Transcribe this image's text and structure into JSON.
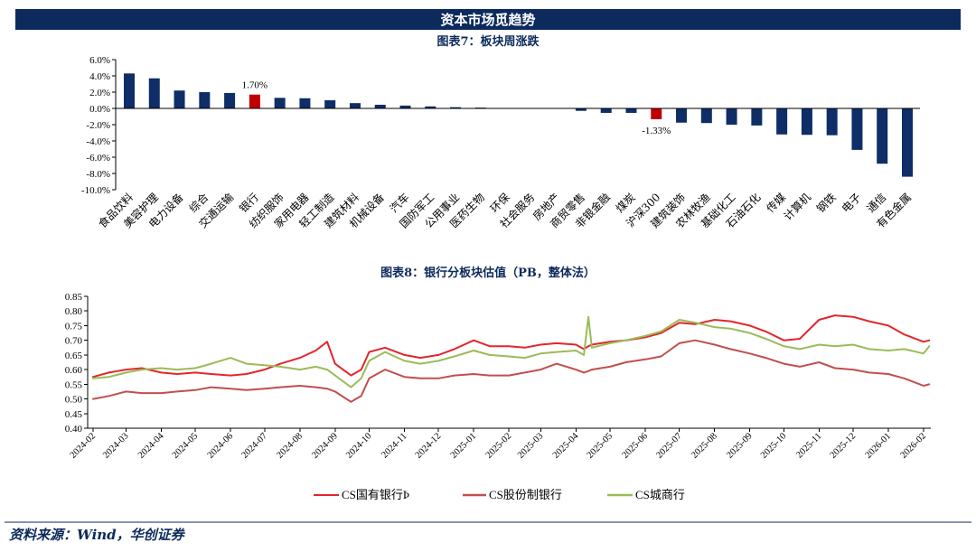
{
  "banner": {
    "title": "资本市场觅趋势"
  },
  "footer": {
    "source": "资料来源：Wind，华创证券"
  },
  "colors": {
    "banner": "#0c2a5b",
    "title": "#0c2a5b",
    "bar": "#0f2d66",
    "highlight_bar": "#c00000",
    "source": "#0c2a5b",
    "footer_rule": "#0c2a5b"
  },
  "chart_data": [
    {
      "type": "bar",
      "title": "图表7：板块周涨跌",
      "categories": [
        "食品饮料",
        "美容护理",
        "电力设备",
        "综合",
        "交通运输",
        "银行",
        "纺织服饰",
        "家用电器",
        "轻工制造",
        "建筑材料",
        "机械设备",
        "汽车",
        "国防军工",
        "公用事业",
        "医药生物",
        "环保",
        "社会服务",
        "房地产",
        "商贸零售",
        "非银金融",
        "煤炭",
        "沪深300",
        "建筑装饰",
        "农林牧渔",
        "基础化工",
        "石油石化",
        "传媒",
        "计算机",
        "钢铁",
        "电子",
        "通信",
        "有色金属"
      ],
      "values": [
        4.3,
        3.7,
        2.2,
        2.0,
        1.9,
        1.7,
        1.3,
        1.25,
        1.0,
        0.65,
        0.45,
        0.35,
        0.25,
        0.15,
        0.1,
        0.05,
        0.02,
        -0.05,
        -0.3,
        -0.55,
        -0.55,
        -1.33,
        -1.75,
        -1.8,
        -2.0,
        -2.1,
        -3.2,
        -3.25,
        -3.3,
        -5.1,
        -6.8,
        -8.4
      ],
      "highlight": [
        "银行",
        "沪深300"
      ],
      "data_labels": [
        {
          "category": "银行",
          "text": "1.70%"
        },
        {
          "category": "沪深300",
          "text": "-1.33%"
        }
      ],
      "ylim": [
        -10,
        6
      ],
      "yticks": [
        "6.0%",
        "4.0%",
        "2.0%",
        "0.0%",
        "-2.0%",
        "-4.0%",
        "-6.0%",
        "-8.0%",
        "-10.0%"
      ],
      "grid": false
    },
    {
      "type": "line",
      "title": "图表8：银行分板块估值（PB，整体法）",
      "x": [
        "2024-02-01",
        "2024-02-15",
        "2024-03-01",
        "2024-03-15",
        "2024-04-01",
        "2024-04-15",
        "2024-05-01",
        "2024-05-15",
        "2024-06-01",
        "2024-06-15",
        "2024-07-01",
        "2024-07-15",
        "2024-08-01",
        "2024-08-15",
        "2024-08-25",
        "2024-09-01",
        "2024-09-15",
        "2024-09-24",
        "2024-10-01",
        "2024-10-15",
        "2024-11-01",
        "2024-11-15",
        "2024-12-01",
        "2024-12-15",
        "2025-01-01",
        "2025-01-15",
        "2025-02-01",
        "2025-02-15",
        "2025-03-01",
        "2025-03-15",
        "2025-04-01",
        "2025-04-08",
        "2025-04-12",
        "2025-04-15",
        "2025-05-01",
        "2025-05-15",
        "2025-06-01",
        "2025-06-15",
        "2025-07-01",
        "2025-07-15",
        "2025-08-01",
        "2025-08-15",
        "2025-09-01",
        "2025-09-15",
        "2025-10-01",
        "2025-10-15",
        "2025-11-01",
        "2025-11-15",
        "2025-12-01",
        "2025-12-15",
        "2026-01-01",
        "2026-01-15",
        "2026-02-01",
        "2026-02-06"
      ],
      "series": [
        {
          "name": "CS国有银行Ϸ",
          "color": "#e3262c",
          "values": [
            0.575,
            0.59,
            0.6,
            0.605,
            0.59,
            0.585,
            0.59,
            0.585,
            0.58,
            0.585,
            0.6,
            0.62,
            0.64,
            0.665,
            0.695,
            0.62,
            0.58,
            0.6,
            0.66,
            0.675,
            0.65,
            0.64,
            0.65,
            0.67,
            0.7,
            0.68,
            0.68,
            0.675,
            0.685,
            0.69,
            0.685,
            0.67,
            0.68,
            0.685,
            0.695,
            0.7,
            0.71,
            0.725,
            0.76,
            0.755,
            0.77,
            0.765,
            0.75,
            0.73,
            0.7,
            0.705,
            0.77,
            0.785,
            0.78,
            0.765,
            0.75,
            0.72,
            0.695,
            0.7
          ]
        },
        {
          "name": "CS股份制银行",
          "color": "#c0504d",
          "values": [
            0.5,
            0.51,
            0.525,
            0.52,
            0.52,
            0.525,
            0.53,
            0.54,
            0.535,
            0.53,
            0.535,
            0.54,
            0.545,
            0.54,
            0.535,
            0.525,
            0.49,
            0.51,
            0.57,
            0.6,
            0.575,
            0.57,
            0.57,
            0.58,
            0.585,
            0.58,
            0.58,
            0.59,
            0.6,
            0.62,
            0.6,
            0.59,
            0.595,
            0.6,
            0.61,
            0.625,
            0.635,
            0.645,
            0.69,
            0.7,
            0.685,
            0.67,
            0.655,
            0.64,
            0.62,
            0.61,
            0.625,
            0.605,
            0.6,
            0.59,
            0.585,
            0.57,
            0.545,
            0.55
          ]
        },
        {
          "name": "CS城商行",
          "color": "#9bbb59",
          "values": [
            0.57,
            0.575,
            0.59,
            0.6,
            0.605,
            0.6,
            0.605,
            0.62,
            0.64,
            0.62,
            0.615,
            0.61,
            0.6,
            0.61,
            0.6,
            0.58,
            0.54,
            0.57,
            0.63,
            0.66,
            0.63,
            0.62,
            0.63,
            0.645,
            0.665,
            0.65,
            0.645,
            0.64,
            0.655,
            0.66,
            0.665,
            0.65,
            0.78,
            0.675,
            0.69,
            0.7,
            0.715,
            0.73,
            0.77,
            0.76,
            0.745,
            0.74,
            0.725,
            0.705,
            0.68,
            0.67,
            0.685,
            0.68,
            0.685,
            0.67,
            0.665,
            0.67,
            0.655,
            0.68
          ]
        }
      ],
      "xticks": [
        "2024-02",
        "2024-03",
        "2024-04",
        "2024-05",
        "2024-06",
        "2024-07",
        "2024-08",
        "2024-09",
        "2024-10",
        "2024-11",
        "2024-12",
        "2025-01",
        "2025-02",
        "2025-03",
        "2025-04",
        "2025-05",
        "2025-06",
        "2025-07",
        "2025-08",
        "2025-09",
        "2025-10",
        "2025-11",
        "2025-12",
        "2026-01",
        "2026-02"
      ],
      "yticks": [
        "0.85",
        "0.80",
        "0.75",
        "0.70",
        "0.65",
        "0.60",
        "0.55",
        "0.50",
        "0.45",
        "0.40"
      ],
      "ylim": [
        0.4,
        0.85
      ],
      "legend": "bottom",
      "grid": false
    }
  ]
}
